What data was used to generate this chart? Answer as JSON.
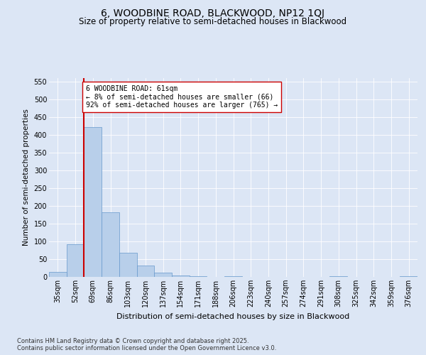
{
  "title": "6, WOODBINE ROAD, BLACKWOOD, NP12 1QJ",
  "subtitle": "Size of property relative to semi-detached houses in Blackwood",
  "xlabel": "Distribution of semi-detached houses by size in Blackwood",
  "ylabel": "Number of semi-detached properties",
  "bin_labels": [
    "35sqm",
    "52sqm",
    "69sqm",
    "86sqm",
    "103sqm",
    "120sqm",
    "137sqm",
    "154sqm",
    "171sqm",
    "188sqm",
    "206sqm",
    "223sqm",
    "240sqm",
    "257sqm",
    "274sqm",
    "291sqm",
    "308sqm",
    "325sqm",
    "342sqm",
    "359sqm",
    "376sqm"
  ],
  "bar_values": [
    15,
    93,
    422,
    183,
    68,
    32,
    12,
    5,
    3,
    0,
    3,
    0,
    0,
    0,
    0,
    0,
    3,
    0,
    0,
    0,
    3
  ],
  "bar_color": "#b8cfea",
  "bar_edge_color": "#6699cc",
  "vline_x": 1.5,
  "vline_color": "#cc0000",
  "annotation_text": "6 WOODBINE ROAD: 61sqm\n← 8% of semi-detached houses are smaller (66)\n92% of semi-detached houses are larger (765) →",
  "annotation_box_color": "#ffffff",
  "annotation_box_edge": "#cc0000",
  "ylim": [
    0,
    560
  ],
  "yticks": [
    0,
    50,
    100,
    150,
    200,
    250,
    300,
    350,
    400,
    450,
    500,
    550
  ],
  "bg_color": "#dce6f5",
  "plot_bg_color": "#dce6f5",
  "footer": "Contains HM Land Registry data © Crown copyright and database right 2025.\nContains public sector information licensed under the Open Government Licence v3.0.",
  "title_fontsize": 10,
  "subtitle_fontsize": 8.5,
  "axis_label_fontsize": 7.5,
  "tick_fontsize": 7,
  "footer_fontsize": 6,
  "annot_fontsize": 7
}
